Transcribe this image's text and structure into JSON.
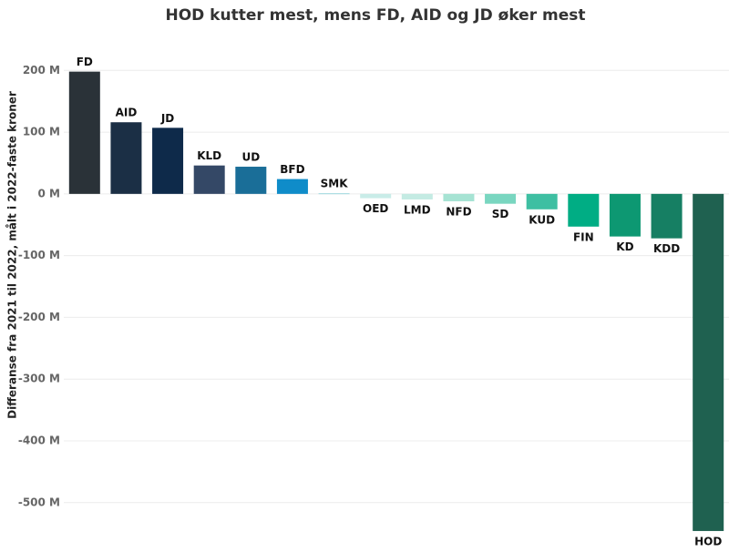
{
  "chart_data": {
    "type": "bar",
    "title": "HOD kutter mest, mens FD, AID og JD øker mest",
    "y_label": "Differanse fra 2021 til 2022, målt i 2022-faste kroner",
    "categories": [
      "FD",
      "AID",
      "JD",
      "KLD",
      "UD",
      "BFD",
      "SMK",
      "OED",
      "LMD",
      "NFD",
      "SD",
      "KUD",
      "FIN",
      "KD",
      "KDD",
      "HOD"
    ],
    "values": [
      198000000,
      116000000,
      107000000,
      46000000,
      44000000,
      24000000,
      1000000,
      -7000000,
      -9000000,
      -12000000,
      -16000000,
      -25000000,
      -53000000,
      -69000000,
      -72000000,
      -546000000
    ],
    "colors": [
      "#2a3238",
      "#1b2f45",
      "#0e2a4a",
      "#344866",
      "#1a6e98",
      "#0f8cc9",
      "#9fd8e0",
      "#c9ece8",
      "#c4ebe3",
      "#a6e3d3",
      "#79d6c0",
      "#3ebfa2",
      "#00ad84",
      "#0d9872",
      "#167f63",
      "#1f6150"
    ],
    "ylim": [
      -580000000,
      255000000
    ],
    "yticks": [
      {
        "value": -500000000,
        "label": "-500 M"
      },
      {
        "value": -400000000,
        "label": "-400 M"
      },
      {
        "value": -300000000,
        "label": "-300 M"
      },
      {
        "value": -200000000,
        "label": "-200 M"
      },
      {
        "value": -100000000,
        "label": "-100 M"
      },
      {
        "value": 0,
        "label": "0 M"
      },
      {
        "value": 100000000,
        "label": "100 M"
      },
      {
        "value": 200000000,
        "label": "200 M"
      }
    ],
    "grid": true
  }
}
